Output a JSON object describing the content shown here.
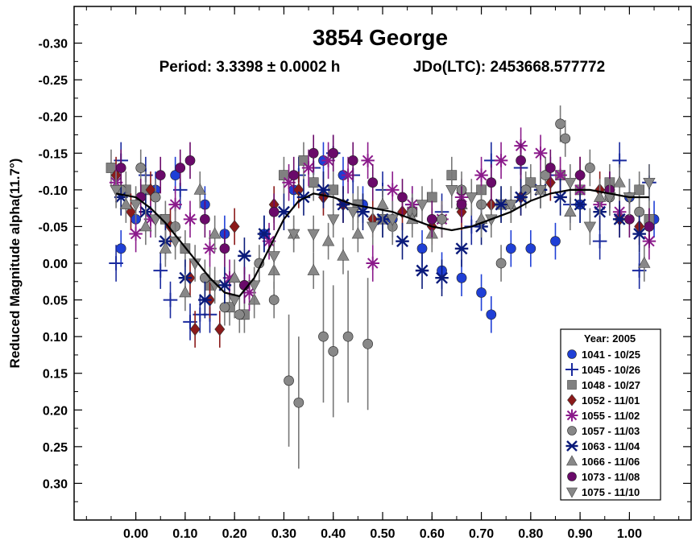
{
  "chart_data": {
    "type": "scatter",
    "title": "3854 George",
    "subtitle_period": "Period: 3.3398 ± 0.0002 h",
    "subtitle_epoch": "JDo(LTC): 2453668.577772",
    "xlabel": "",
    "ylabel": "Reduced Magnitude alpha(11.7°)",
    "xlim": [
      -0.125,
      1.125
    ],
    "ylim": [
      -0.35,
      0.35
    ],
    "y_inverted": true,
    "x_ticks": [
      0.0,
      0.1,
      0.2,
      0.3,
      0.4,
      0.5,
      0.6,
      0.7,
      0.8,
      0.9,
      1.0
    ],
    "x_tick_labels": [
      "0.00",
      "0.10",
      "0.20",
      "0.30",
      "0.40",
      "0.50",
      "0.60",
      "0.70",
      "0.80",
      "0.90",
      "1.00"
    ],
    "y_ticks": [
      -0.3,
      -0.25,
      -0.2,
      -0.15,
      -0.1,
      -0.05,
      0.0,
      0.05,
      0.1,
      0.15,
      0.2,
      0.25,
      0.3
    ],
    "y_tick_labels": [
      "-0.30",
      "-0.25",
      "-0.20",
      "-0.15",
      "-0.10",
      "-0.05",
      "0.00",
      "0.05",
      "0.10",
      "0.15",
      "0.20",
      "0.25",
      "0.30"
    ],
    "grid": false,
    "legend_placement": "bottom-right",
    "legend_title": "Year: 2005",
    "fit_curve": {
      "x": [
        -0.04,
        0.0,
        0.03,
        0.06,
        0.09,
        0.12,
        0.15,
        0.18,
        0.21,
        0.24,
        0.27,
        0.3,
        0.33,
        0.36,
        0.4,
        0.44,
        0.48,
        0.52,
        0.56,
        0.6,
        0.64,
        0.68,
        0.72,
        0.76,
        0.8,
        0.84,
        0.88,
        0.92,
        0.96,
        1.0,
        1.04
      ],
      "y": [
        -0.095,
        -0.09,
        -0.075,
        -0.055,
        -0.03,
        -0.005,
        0.02,
        0.04,
        0.045,
        0.02,
        -0.02,
        -0.06,
        -0.085,
        -0.095,
        -0.09,
        -0.08,
        -0.075,
        -0.07,
        -0.06,
        -0.05,
        -0.045,
        -0.05,
        -0.06,
        -0.07,
        -0.085,
        -0.095,
        -0.1,
        -0.1,
        -0.095,
        -0.09,
        -0.09
      ]
    },
    "series": [
      {
        "name": "1041 - 10/25",
        "marker": "circle",
        "color": "#1f3fd6",
        "x": [
          -0.03,
          0.0,
          0.04,
          0.08,
          0.14,
          0.18,
          0.22,
          0.26,
          0.32,
          0.38,
          0.42,
          0.46,
          0.52,
          0.58,
          0.62,
          0.66,
          0.7,
          0.72,
          0.76,
          0.8,
          0.85,
          0.9,
          0.96,
          1.0,
          1.05
        ],
        "y": [
          -0.02,
          -0.06,
          -0.1,
          -0.12,
          -0.08,
          -0.04,
          0.03,
          -0.04,
          -0.1,
          -0.14,
          -0.12,
          -0.08,
          -0.06,
          -0.02,
          0.01,
          0.02,
          0.04,
          0.07,
          -0.02,
          -0.02,
          -0.03,
          -0.08,
          -0.1,
          -0.09,
          -0.06
        ]
      },
      {
        "name": "1045 - 10/26",
        "marker": "plus",
        "color": "#1a2a9e",
        "x": [
          -0.04,
          -0.03,
          0.02,
          0.05,
          0.07,
          0.09,
          0.11,
          0.13,
          0.15,
          0.33,
          0.36,
          0.4,
          0.44,
          0.5,
          0.56,
          0.62,
          0.68,
          0.72,
          0.78,
          0.84,
          0.88,
          0.94,
          0.98,
          1.02,
          1.04
        ],
        "y": [
          0.0,
          -0.14,
          -0.12,
          0.01,
          0.05,
          -0.1,
          0.08,
          0.07,
          0.07,
          -0.12,
          -0.13,
          -0.15,
          -0.12,
          -0.1,
          -0.08,
          -0.07,
          -0.05,
          -0.14,
          -0.13,
          -0.12,
          -0.08,
          -0.03,
          -0.14,
          0.01,
          -0.11
        ]
      },
      {
        "name": "1048 - 10/27",
        "marker": "square",
        "color": "#808080",
        "x": [
          -0.05,
          -0.02,
          0.02,
          0.06,
          0.1,
          0.15,
          0.19,
          0.22,
          0.3,
          0.34,
          0.36,
          0.4,
          0.45,
          0.5,
          0.56,
          0.6,
          0.64,
          0.7,
          0.74,
          0.8,
          0.86,
          0.9,
          0.96,
          1.02,
          1.04
        ],
        "y": [
          -0.13,
          -0.1,
          -0.1,
          -0.06,
          -0.02,
          0.03,
          0.06,
          0.07,
          -0.12,
          -0.14,
          -0.11,
          -0.1,
          -0.08,
          -0.06,
          -0.07,
          -0.09,
          -0.12,
          -0.1,
          -0.08,
          -0.11,
          -0.12,
          -0.1,
          -0.11,
          -0.1,
          -0.06
        ]
      },
      {
        "name": "1052 - 11/01",
        "marker": "diamond",
        "color": "#8b1a1a",
        "x": [
          -0.04,
          -0.01,
          0.03,
          0.07,
          0.11,
          0.12,
          0.15,
          0.17,
          0.2,
          0.28,
          0.33,
          0.38,
          0.42,
          0.48,
          0.54,
          0.6,
          0.66,
          0.72,
          0.78,
          0.84,
          0.9,
          0.94,
          0.98,
          1.02
        ],
        "y": [
          -0.12,
          -0.07,
          -0.1,
          -0.05,
          0.02,
          0.09,
          0.05,
          0.09,
          -0.05,
          -0.08,
          -0.1,
          -0.09,
          -0.08,
          -0.06,
          -0.07,
          -0.05,
          -0.07,
          -0.08,
          -0.09,
          -0.11,
          -0.12,
          -0.1,
          -0.06,
          -0.05
        ]
      },
      {
        "name": "1055 - 11/02",
        "marker": "star",
        "color": "#8b1a8b",
        "x": [
          -0.04,
          0.0,
          0.03,
          0.08,
          0.11,
          0.15,
          0.19,
          0.23,
          0.27,
          0.31,
          0.35,
          0.39,
          0.43,
          0.47,
          0.48,
          0.52,
          0.56,
          0.62,
          0.66,
          0.7,
          0.74,
          0.78,
          0.82,
          0.86,
          0.9,
          0.94,
          0.98,
          1.04
        ],
        "y": [
          -0.11,
          -0.04,
          -0.06,
          -0.08,
          -0.06,
          -0.02,
          0.02,
          0.04,
          -0.03,
          -0.11,
          -0.13,
          -0.14,
          -0.12,
          -0.14,
          0.0,
          -0.1,
          -0.08,
          -0.06,
          -0.09,
          -0.12,
          -0.14,
          -0.16,
          -0.15,
          -0.12,
          -0.1,
          -0.08,
          -0.07,
          -0.03
        ]
      },
      {
        "name": "1057 - 11/03",
        "marker": "circle",
        "color": "#888888",
        "x": [
          -0.03,
          0.01,
          0.04,
          0.08,
          0.14,
          0.18,
          0.21,
          0.25,
          0.28,
          0.31,
          0.33,
          0.38,
          0.4,
          0.43,
          0.47,
          0.52,
          0.56,
          0.62,
          0.66,
          0.7,
          0.74,
          0.79,
          0.83,
          0.86,
          0.87,
          0.92,
          0.96,
          1.02
        ],
        "y": [
          -0.1,
          -0.13,
          -0.09,
          -0.05,
          0.02,
          0.06,
          0.07,
          0.0,
          0.05,
          0.16,
          0.19,
          0.1,
          0.12,
          0.1,
          0.11,
          -0.05,
          -0.07,
          -0.06,
          -0.1,
          -0.08,
          0.0,
          -0.1,
          -0.12,
          -0.19,
          -0.17,
          -0.13,
          -0.09,
          -0.07
        ]
      },
      {
        "name": "1063 - 11/04",
        "marker": "asterisk",
        "color": "#0a1a7a",
        "x": [
          -0.03,
          0.02,
          0.06,
          0.1,
          0.14,
          0.18,
          0.22,
          0.26,
          0.3,
          0.34,
          0.38,
          0.42,
          0.46,
          0.5,
          0.54,
          0.58,
          0.62,
          0.66,
          0.7,
          0.74,
          0.78,
          0.82,
          0.86,
          0.9,
          0.94,
          0.98,
          1.02
        ],
        "y": [
          -0.09,
          -0.07,
          -0.03,
          0.02,
          0.05,
          0.03,
          -0.01,
          -0.04,
          -0.07,
          -0.09,
          -0.1,
          -0.08,
          -0.07,
          -0.06,
          -0.03,
          0.01,
          0.02,
          -0.02,
          -0.05,
          -0.08,
          -0.09,
          -0.1,
          -0.09,
          -0.08,
          -0.07,
          -0.06,
          -0.04
        ]
      },
      {
        "name": "1066 - 11/06",
        "marker": "triangle-up",
        "color": "#888888",
        "x": [
          -0.02,
          0.02,
          0.06,
          0.1,
          0.13,
          0.16,
          0.2,
          0.24,
          0.28,
          0.32,
          0.36,
          0.39,
          0.42,
          0.45,
          0.5,
          0.56,
          0.6,
          0.66,
          0.7,
          0.76,
          0.82,
          0.88,
          0.94,
          0.98,
          1.03
        ],
        "y": [
          -0.08,
          -0.05,
          -0.02,
          0.04,
          -0.1,
          -0.04,
          0.02,
          0.05,
          0.01,
          -0.04,
          0.01,
          -0.03,
          -0.01,
          -0.04,
          -0.08,
          -0.06,
          -0.04,
          -0.08,
          -0.06,
          -0.08,
          -0.1,
          -0.07,
          -0.09,
          -0.11,
          0.0
        ]
      },
      {
        "name": "1073 - 11/08",
        "marker": "circle",
        "color": "#6a0a6a",
        "x": [
          -0.03,
          0.01,
          0.05,
          0.09,
          0.11,
          0.14,
          0.18,
          0.22,
          0.28,
          0.32,
          0.36,
          0.4,
          0.44,
          0.48,
          0.54,
          0.6,
          0.66,
          0.72,
          0.78,
          0.84,
          0.9,
          0.96,
          1.0,
          1.04
        ],
        "y": [
          -0.13,
          -0.09,
          -0.12,
          -0.13,
          -0.14,
          -0.06,
          -0.02,
          0.03,
          -0.07,
          -0.12,
          -0.15,
          -0.15,
          -0.14,
          -0.11,
          -0.09,
          -0.06,
          -0.08,
          -0.11,
          -0.14,
          -0.13,
          -0.12,
          -0.1,
          -0.06,
          -0.05
        ]
      },
      {
        "name": "1075 - 11/10",
        "marker": "triangle-down",
        "color": "#888888",
        "x": [
          -0.04,
          0.0,
          0.04,
          0.08,
          0.12,
          0.16,
          0.2,
          0.24,
          0.28,
          0.32,
          0.36,
          0.4,
          0.44,
          0.48,
          0.52,
          0.58,
          0.64,
          0.68,
          0.72,
          0.76,
          0.82,
          0.88,
          0.92,
          0.96,
          1.0,
          1.04
        ],
        "y": [
          -0.1,
          -0.08,
          -0.06,
          -0.03,
          0.0,
          0.03,
          0.05,
          0.03,
          -0.01,
          -0.04,
          -0.04,
          -0.06,
          -0.07,
          -0.05,
          -0.06,
          -0.08,
          -0.1,
          -0.09,
          -0.06,
          -0.08,
          -0.1,
          -0.11,
          -0.05,
          -0.09,
          -0.09,
          -0.11
        ]
      }
    ]
  }
}
